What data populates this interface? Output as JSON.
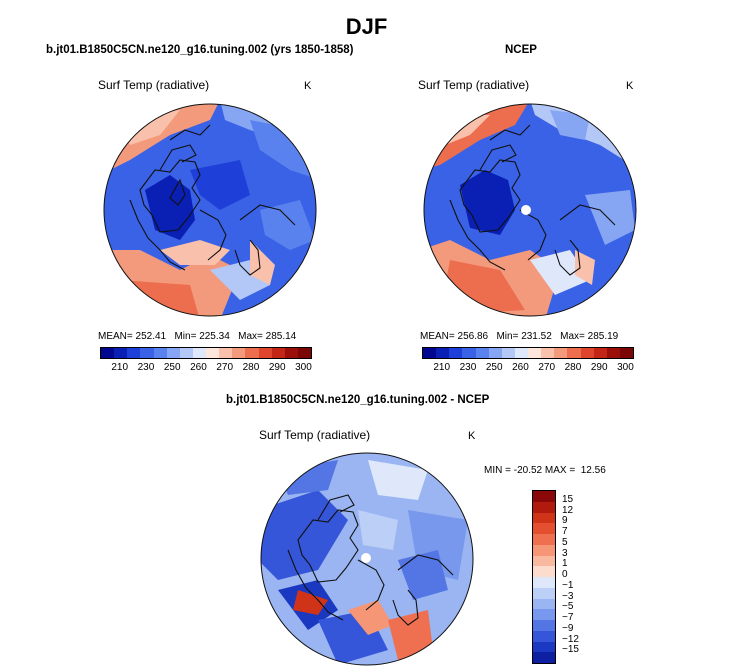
{
  "figure": {
    "title": "DJF"
  },
  "panel_model": {
    "header": "b.jt01.B1850C5CN.ne120_g16.tuning.002 (yrs 1850-1858)",
    "variable": "Surf Temp (radiative)",
    "units": "K",
    "stats": {
      "mean_label": "MEAN=",
      "mean": "252.41",
      "min_label": "Min=",
      "min": "225.34",
      "max_label": "Max=",
      "max": "285.14"
    }
  },
  "panel_obs": {
    "header": "NCEP",
    "variable": "Surf Temp (radiative)",
    "units": "K",
    "stats": {
      "mean_label": "MEAN=",
      "mean": "256.86",
      "min_label": "Min=",
      "min": "231.52",
      "max_label": "Max=",
      "max": "285.19"
    }
  },
  "panel_diff": {
    "header": "b.jt01.B1850C5CN.ne120_g16.tuning.002 - NCEP",
    "variable": "Surf Temp (radiative)",
    "units": "K",
    "stats": {
      "min_label": "MIN =",
      "min": "-20.52",
      "max_label": "MAX =",
      "max": "12.56"
    }
  },
  "colorbar_abs": {
    "labels": [
      "210",
      "230",
      "250",
      "260",
      "270",
      "280",
      "290",
      "300"
    ],
    "colors": [
      "#02078f",
      "#0a1fb4",
      "#1e3fd8",
      "#3a62e6",
      "#5a82ee",
      "#86a6f4",
      "#b3c8f7",
      "#dfe7fb",
      "#fde6dc",
      "#f9c1ab",
      "#f39a7c",
      "#ec6e4e",
      "#de452c",
      "#c32516",
      "#9b0f0a",
      "#7a0606"
    ]
  },
  "colorbar_diff": {
    "labels": [
      "15",
      "12",
      "9",
      "7",
      "5",
      "3",
      "1",
      "0",
      "−1",
      "−3",
      "−5",
      "−7",
      "−9",
      "−12",
      "−15"
    ],
    "colors": [
      "#8a0807",
      "#b01b0e",
      "#cf3418",
      "#e4502f",
      "#ef7050",
      "#f59677",
      "#f8b9a0",
      "#fbdccd",
      "#dfe8fb",
      "#bccff7",
      "#9ab5f2",
      "#7798ec",
      "#5376e4",
      "#3556d8",
      "#1b38c0",
      "#0d20a2"
    ]
  },
  "map_colors": {
    "ocean_cold": "#2f58e0",
    "mid_blue": "#5f87ee",
    "pale_blue": "#a9c2f6",
    "warm_red": "#f08a68",
    "light_red": "#f7b39a",
    "land_outline": "#111111"
  }
}
